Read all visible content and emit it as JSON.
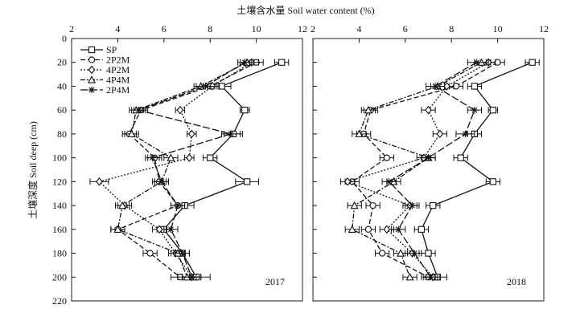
{
  "figure": {
    "top_axis_title": "土壤含水量 Soil water content (%)",
    "left_axis_title": "土壤深度 Soil deep (cm)"
  },
  "legend": {
    "entries": [
      "SP",
      "2P2M",
      "4P2M",
      "4P4M",
      "2P4M"
    ]
  },
  "colors": {
    "ink": "#111111",
    "axis_title": "#222222"
  },
  "chart_data": [
    {
      "type": "line",
      "panel_label": "2017",
      "x_axis": {
        "label": "Soil water content (%)",
        "range": [
          2,
          12
        ],
        "ticks": [
          2,
          4,
          6,
          8,
          10,
          12
        ],
        "position": "top"
      },
      "y_axis": {
        "label": "Soil deep (cm)",
        "range": [
          0,
          220
        ],
        "ticks": [
          0,
          20,
          40,
          60,
          80,
          100,
          120,
          140,
          160,
          180,
          200,
          220
        ],
        "inverted": true
      },
      "depths": [
        20,
        40,
        60,
        80,
        100,
        120,
        140,
        160,
        180,
        200
      ],
      "series": [
        {
          "name": "SP",
          "marker": "square",
          "dash": "solid",
          "values": [
            11.1,
            8.5,
            9.5,
            9.0,
            8.0,
            9.6,
            6.9,
            6.0,
            6.8,
            7.4
          ],
          "err": [
            0.3,
            0.4,
            0.2,
            0.4,
            0.3,
            0.5,
            0.4,
            0.3,
            0.3,
            0.6
          ]
        },
        {
          "name": "2P2M",
          "marker": "circle",
          "dash": "dashed",
          "values": [
            10.0,
            8.0,
            5.0,
            4.5,
            5.6,
            5.8,
            6.6,
            4.0,
            5.4,
            6.7
          ],
          "err": [
            0.3,
            0.3,
            0.3,
            0.3,
            0.3,
            0.3,
            0.3,
            0.3,
            0.3,
            0.4
          ]
        },
        {
          "name": "4P2M",
          "marker": "diamond",
          "dash": "dotted",
          "values": [
            9.8,
            8.1,
            6.7,
            7.2,
            7.1,
            3.2,
            4.3,
            5.8,
            6.5,
            7.2
          ],
          "err": [
            0.3,
            0.3,
            0.2,
            0.2,
            0.2,
            0.4,
            0.3,
            0.3,
            0.3,
            0.4
          ]
        },
        {
          "name": "4P4M",
          "marker": "triangle",
          "dash": "dashdot",
          "values": [
            9.6,
            7.6,
            4.8,
            4.6,
            6.3,
            5.9,
            4.2,
            4.0,
            6.6,
            7.0
          ],
          "err": [
            0.3,
            0.3,
            0.3,
            0.3,
            0.3,
            0.3,
            0.3,
            0.3,
            0.3,
            0.4
          ]
        },
        {
          "name": "2P4M",
          "marker": "star",
          "dash": "longdash",
          "values": [
            9.5,
            7.8,
            4.9,
            8.9,
            5.5,
            5.9,
            6.6,
            6.3,
            6.8,
            7.2
          ],
          "err": [
            0.3,
            0.4,
            0.3,
            0.4,
            0.3,
            0.3,
            0.3,
            0.3,
            0.3,
            0.4
          ]
        }
      ]
    },
    {
      "type": "line",
      "panel_label": "2018",
      "x_axis": {
        "label": "Soil water content (%)",
        "range": [
          2,
          12
        ],
        "ticks": [
          2,
          4,
          6,
          8,
          10,
          12
        ],
        "position": "top"
      },
      "y_axis": {
        "label": "Soil deep (cm)",
        "range": [
          0,
          220
        ],
        "ticks": [
          0,
          20,
          40,
          60,
          80,
          100,
          120,
          140,
          160,
          180,
          200,
          220
        ],
        "inverted": true
      },
      "depths": [
        20,
        40,
        60,
        80,
        100,
        120,
        140,
        160,
        180,
        200
      ],
      "series": [
        {
          "name": "SP",
          "marker": "square",
          "dash": "solid",
          "values": [
            11.5,
            9.0,
            9.8,
            9.0,
            8.4,
            9.8,
            7.2,
            6.7,
            7.0,
            7.4
          ],
          "err": [
            0.3,
            0.3,
            0.2,
            0.3,
            0.3,
            0.3,
            0.3,
            0.3,
            0.3,
            0.4
          ]
        },
        {
          "name": "2P2M",
          "marker": "circle",
          "dash": "dashed",
          "values": [
            10.0,
            8.2,
            4.5,
            4.2,
            5.2,
            3.7,
            4.6,
            4.4,
            5.0,
            7.0
          ],
          "err": [
            0.3,
            0.3,
            0.3,
            0.3,
            0.3,
            0.3,
            0.3,
            0.3,
            0.3,
            0.3
          ]
        },
        {
          "name": "4P2M",
          "marker": "diamond",
          "dash": "dotted",
          "values": [
            9.6,
            7.8,
            7.0,
            7.5,
            6.8,
            3.5,
            6.2,
            5.2,
            6.3,
            7.2
          ],
          "err": [
            0.3,
            0.3,
            0.3,
            0.3,
            0.3,
            0.3,
            0.3,
            0.3,
            0.3,
            0.3
          ]
        },
        {
          "name": "4P4M",
          "marker": "triangle",
          "dash": "dashdot",
          "values": [
            9.3,
            7.4,
            4.4,
            4.0,
            7.0,
            5.5,
            3.8,
            3.7,
            5.8,
            6.2
          ],
          "err": [
            0.3,
            0.3,
            0.3,
            0.3,
            0.3,
            0.3,
            0.3,
            0.3,
            0.3,
            0.3
          ]
        },
        {
          "name": "2P4M",
          "marker": "star",
          "dash": "longdash",
          "values": [
            9.1,
            7.3,
            9.0,
            8.6,
            7.0,
            5.3,
            6.3,
            5.7,
            6.4,
            7.1
          ],
          "err": [
            0.4,
            0.4,
            0.3,
            0.4,
            0.3,
            0.3,
            0.3,
            0.3,
            0.3,
            0.3
          ]
        }
      ]
    }
  ]
}
